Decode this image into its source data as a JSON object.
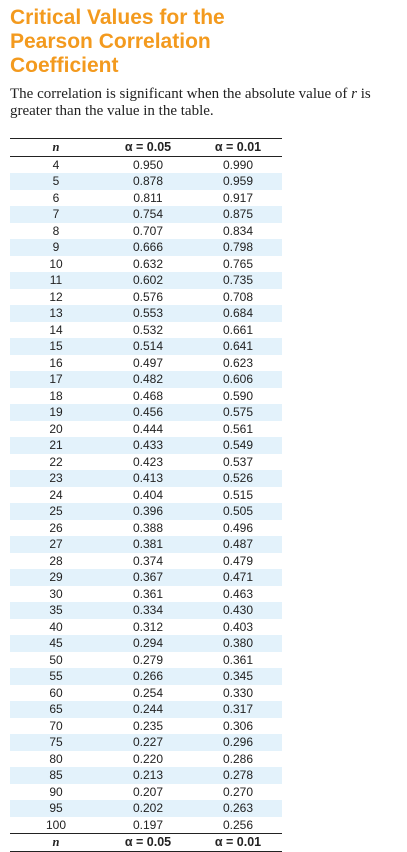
{
  "title_lines": [
    "Critical Values for the",
    "Pearson Correlation",
    "Coefficient"
  ],
  "description": {
    "before_r": "The correlation is significant when the absolute value of ",
    "variable": "r",
    "after_r": " is greater than the value in the table."
  },
  "table": {
    "header_n": "n",
    "header_alpha_05": "α = 0.05",
    "header_alpha_01": "α = 0.01",
    "rows": [
      {
        "n": "4",
        "a05": "0.950",
        "a01": "0.990"
      },
      {
        "n": "5",
        "a05": "0.878",
        "a01": "0.959"
      },
      {
        "n": "6",
        "a05": "0.811",
        "a01": "0.917"
      },
      {
        "n": "7",
        "a05": "0.754",
        "a01": "0.875"
      },
      {
        "n": "8",
        "a05": "0.707",
        "a01": "0.834"
      },
      {
        "n": "9",
        "a05": "0.666",
        "a01": "0.798"
      },
      {
        "n": "10",
        "a05": "0.632",
        "a01": "0.765"
      },
      {
        "n": "11",
        "a05": "0.602",
        "a01": "0.735"
      },
      {
        "n": "12",
        "a05": "0.576",
        "a01": "0.708"
      },
      {
        "n": "13",
        "a05": "0.553",
        "a01": "0.684"
      },
      {
        "n": "14",
        "a05": "0.532",
        "a01": "0.661"
      },
      {
        "n": "15",
        "a05": "0.514",
        "a01": "0.641"
      },
      {
        "n": "16",
        "a05": "0.497",
        "a01": "0.623"
      },
      {
        "n": "17",
        "a05": "0.482",
        "a01": "0.606"
      },
      {
        "n": "18",
        "a05": "0.468",
        "a01": "0.590"
      },
      {
        "n": "19",
        "a05": "0.456",
        "a01": "0.575"
      },
      {
        "n": "20",
        "a05": "0.444",
        "a01": "0.561"
      },
      {
        "n": "21",
        "a05": "0.433",
        "a01": "0.549"
      },
      {
        "n": "22",
        "a05": "0.423",
        "a01": "0.537"
      },
      {
        "n": "23",
        "a05": "0.413",
        "a01": "0.526"
      },
      {
        "n": "24",
        "a05": "0.404",
        "a01": "0.515"
      },
      {
        "n": "25",
        "a05": "0.396",
        "a01": "0.505"
      },
      {
        "n": "26",
        "a05": "0.388",
        "a01": "0.496"
      },
      {
        "n": "27",
        "a05": "0.381",
        "a01": "0.487"
      },
      {
        "n": "28",
        "a05": "0.374",
        "a01": "0.479"
      },
      {
        "n": "29",
        "a05": "0.367",
        "a01": "0.471"
      },
      {
        "n": "30",
        "a05": "0.361",
        "a01": "0.463"
      },
      {
        "n": "35",
        "a05": "0.334",
        "a01": "0.430"
      },
      {
        "n": "40",
        "a05": "0.312",
        "a01": "0.403"
      },
      {
        "n": "45",
        "a05": "0.294",
        "a01": "0.380"
      },
      {
        "n": "50",
        "a05": "0.279",
        "a01": "0.361"
      },
      {
        "n": "55",
        "a05": "0.266",
        "a01": "0.345"
      },
      {
        "n": "60",
        "a05": "0.254",
        "a01": "0.330"
      },
      {
        "n": "65",
        "a05": "0.244",
        "a01": "0.317"
      },
      {
        "n": "70",
        "a05": "0.235",
        "a01": "0.306"
      },
      {
        "n": "75",
        "a05": "0.227",
        "a01": "0.296"
      },
      {
        "n": "80",
        "a05": "0.220",
        "a01": "0.286"
      },
      {
        "n": "85",
        "a05": "0.213",
        "a01": "0.278"
      },
      {
        "n": "90",
        "a05": "0.207",
        "a01": "0.270"
      },
      {
        "n": "95",
        "a05": "0.202",
        "a01": "0.263"
      },
      {
        "n": "100",
        "a05": "0.197",
        "a01": "0.256"
      }
    ]
  },
  "colors": {
    "title": "#f39a1e",
    "stripe": "#e3f2fb",
    "text": "#222222"
  }
}
